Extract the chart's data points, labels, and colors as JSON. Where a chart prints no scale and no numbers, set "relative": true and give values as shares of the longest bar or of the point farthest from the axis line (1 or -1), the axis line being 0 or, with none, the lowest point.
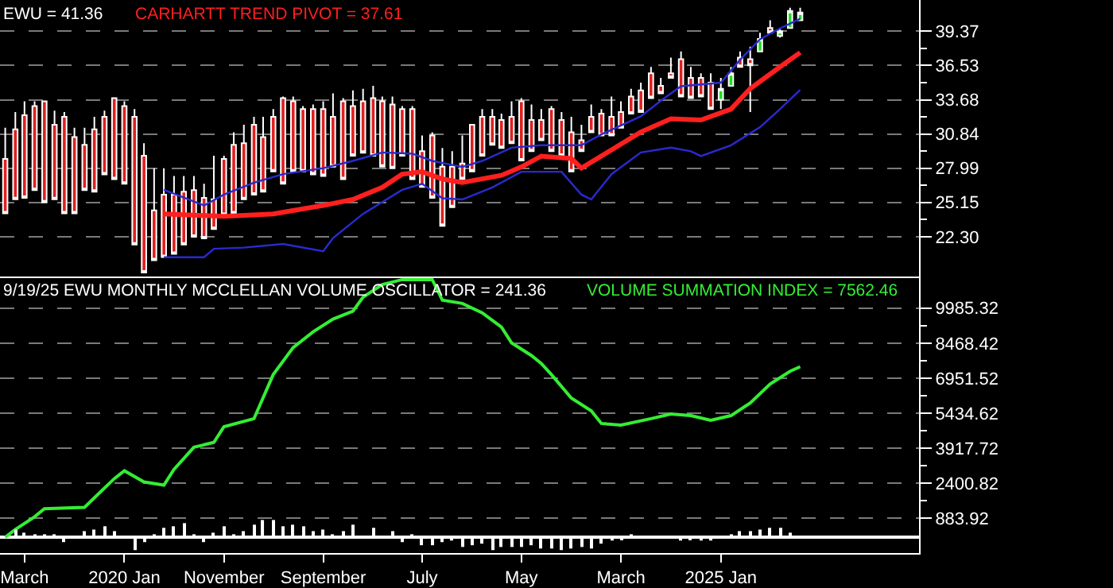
{
  "chart_data": [
    {
      "type": "candlestick",
      "xlim": [
        "2018-12-16",
        "2026-08-31"
      ],
      "ylim": [
        19.0,
        41.96
      ],
      "tick_labels": "y",
      "grid": "y",
      "legend": false,
      "yticks": [
        39.37,
        {
          "value": 37.95,
          "label": null
        },
        36.53,
        {
          "value": 35.105,
          "label": null
        },
        33.68,
        {
          "value": 32.26,
          "label": null
        },
        30.84,
        {
          "value": 29.415,
          "label": null
        },
        27.99,
        {
          "value": 26.57,
          "label": null
        },
        25.15,
        {
          "value": 23.725,
          "label": null
        },
        {
          "value": 22.3,
          "label": "22.30"
        }
      ],
      "series": [
        {
          "type": "candlestick",
          "name": "EWU = 41.36",
          "color": "#ffffff",
          "x": [
            "2019-01",
            "2019-02",
            "2019-03",
            "2019-04",
            "2019-05",
            "2019-06",
            "2019-07",
            "2019-08",
            "2019-09",
            "2019-10",
            "2019-11",
            "2019-12",
            "2020-01",
            "2020-02",
            "2020-03",
            "2020-04",
            "2020-05",
            "2020-06",
            "2020-07",
            "2020-08",
            "2020-09",
            "2020-10",
            "2020-11",
            "2020-12",
            "2021-01",
            "2021-02",
            "2021-03",
            "2021-04",
            "2021-05",
            "2021-06",
            "2021-07",
            "2021-08",
            "2021-09",
            "2021-10",
            "2021-11",
            "2021-12",
            "2022-01",
            "2022-02",
            "2022-03",
            "2022-04",
            "2022-05",
            "2022-06",
            "2022-07",
            "2022-08",
            "2022-09",
            "2022-10",
            "2022-11",
            "2022-12",
            "2023-01",
            "2023-02",
            "2023-03",
            "2023-04",
            "2023-05",
            "2023-06",
            "2023-07",
            "2023-08",
            "2023-09",
            "2023-10",
            "2023-11",
            "2023-12",
            "2024-01",
            "2024-02",
            "2024-03",
            "2024-04",
            "2024-05",
            "2024-06",
            "2024-07",
            "2024-08",
            "2024-09",
            "2024-10",
            "2024-11",
            "2024-12",
            "2025-01",
            "2025-02",
            "2025-03",
            "2025-04",
            "2025-05",
            "2025-06",
            "2025-07",
            "2025-08",
            "2025-09"
          ],
          "ohlc": [
            [
              28.77,
              31.35,
              24.24,
              24.24
            ],
            [
              31.22,
              32.65,
              25.41,
              25.41
            ],
            [
              32.39,
              33.55,
              25.54,
              25.54
            ],
            [
              33.16,
              33.55,
              26.18,
              26.18
            ],
            [
              33.55,
              33.55,
              25.15,
              25.15
            ],
            [
              31.61,
              32.78,
              25.41,
              25.41
            ],
            [
              32.26,
              32.65,
              24.24,
              24.24
            ],
            [
              30.58,
              31.35,
              24.24,
              24.24
            ],
            [
              29.93,
              31.35,
              26.18,
              26.18
            ],
            [
              31.22,
              32.26,
              26.05,
              26.05
            ],
            [
              32.26,
              32.78,
              27.47,
              27.47
            ],
            [
              33.81,
              33.81,
              27.09,
              27.09
            ],
            [
              33.16,
              33.55,
              26.7,
              26.7
            ],
            [
              32.26,
              32.91,
              21.65,
              21.65
            ],
            [
              29.03,
              30.06,
              19.33,
              19.33
            ],
            [
              24.5,
              27.99,
              20.36,
              20.36
            ],
            [
              25.79,
              27.99,
              20.62,
              20.62
            ],
            [
              25.79,
              27.35,
              20.88,
              20.88
            ],
            [
              26.05,
              27.35,
              21.65,
              21.65
            ],
            [
              26.18,
              27.35,
              22.3,
              22.3
            ],
            [
              25.54,
              26.7,
              22.17,
              22.17
            ],
            [
              25.41,
              29.03,
              22.95,
              22.95
            ],
            [
              28.77,
              29.03,
              24.11,
              24.11
            ],
            [
              29.93,
              30.97,
              24.24,
              24.24
            ],
            [
              30.06,
              31.61,
              25.41,
              25.41
            ],
            [
              31.61,
              32.26,
              25.79,
              25.79
            ],
            [
              30.58,
              32.26,
              26.05,
              26.05
            ],
            [
              32.26,
              32.91,
              27.73,
              27.73
            ],
            [
              33.81,
              33.94,
              26.7,
              26.7
            ],
            [
              33.55,
              33.94,
              27.73,
              27.73
            ],
            [
              32.91,
              33.16,
              27.73,
              27.73
            ],
            [
              32.91,
              33.29,
              27.47,
              27.47
            ],
            [
              32.91,
              33.55,
              27.35,
              27.35
            ],
            [
              32.26,
              34.2,
              28.12,
              28.12
            ],
            [
              33.55,
              33.81,
              27.09,
              27.09
            ],
            [
              33.16,
              34.46,
              29.03,
              29.03
            ],
            [
              33.55,
              34.59,
              29.28,
              29.28
            ],
            [
              33.81,
              34.84,
              29.03,
              29.03
            ],
            [
              33.55,
              33.94,
              28.12,
              28.12
            ],
            [
              33.29,
              33.94,
              27.99,
              27.99
            ],
            [
              32.91,
              33.16,
              29.03,
              29.03
            ],
            [
              32.91,
              33.16,
              27.09,
              27.09
            ],
            [
              29.41,
              30.71,
              26.44,
              26.44
            ],
            [
              30.71,
              30.97,
              25.54,
              25.54
            ],
            [
              28.12,
              29.67,
              23.21,
              23.21
            ],
            [
              28.12,
              29.41,
              24.76,
              24.76
            ],
            [
              28.38,
              30.71,
              27.09,
              27.09
            ],
            [
              31.61,
              31.61,
              27.73,
              27.73
            ],
            [
              32.26,
              32.91,
              29.03,
              29.03
            ],
            [
              32.26,
              32.91,
              29.93,
              29.93
            ],
            [
              32.0,
              32.52,
              29.67,
              29.67
            ],
            [
              32.26,
              33.55,
              30.06,
              30.06
            ],
            [
              33.55,
              33.81,
              28.64,
              28.64
            ],
            [
              32.0,
              33.29,
              29.41,
              29.41
            ],
            [
              32.0,
              32.91,
              30.32,
              30.32
            ],
            [
              32.91,
              33.16,
              29.41,
              29.41
            ],
            [
              32.0,
              32.65,
              29.03,
              29.03
            ],
            [
              30.97,
              32.26,
              27.73,
              27.73
            ],
            [
              30.32,
              31.61,
              29.41,
              29.41
            ],
            [
              32.26,
              33.29,
              30.97,
              30.97
            ],
            [
              32.52,
              32.91,
              30.71,
              30.71
            ],
            [
              32.26,
              33.94,
              30.71,
              30.71
            ],
            [
              32.65,
              33.55,
              31.35,
              31.35
            ],
            [
              33.94,
              34.59,
              32.52,
              32.52
            ],
            [
              34.46,
              35.1,
              32.65,
              32.65
            ],
            [
              35.88,
              36.4,
              33.81,
              33.81
            ],
            [
              34.84,
              35.49,
              34.2,
              34.2
            ],
            [
              35.88,
              37.17,
              35.49,
              35.49
            ],
            [
              37.04,
              37.69,
              33.94,
              33.94
            ],
            [
              35.49,
              36.4,
              33.81,
              33.81
            ],
            [
              35.49,
              35.88,
              33.94,
              33.94
            ],
            [
              35.1,
              35.88,
              32.91,
              32.91
            ],
            [
              33.68,
              35.49,
              32.91,
              34.59
            ],
            [
              34.84,
              36.4,
              34.84,
              35.88
            ],
            [
              37.17,
              37.69,
              36.4,
              36.4
            ],
            [
              37.04,
              38.08,
              32.65,
              36.53
            ],
            [
              37.69,
              39.24,
              37.69,
              38.72
            ],
            [
              39.63,
              40.28,
              39.24,
              39.24
            ],
            [
              38.98,
              39.63,
              38.85,
              39.37
            ],
            [
              39.63,
              41.31,
              39.63,
              41.05
            ],
            [
              40.28,
              41.31,
              40.28,
              40.92
            ]
          ],
          "colors": [
            "#e02020",
            "#e02020",
            "#e02020",
            "#e02020",
            "#e02020",
            "#e02020",
            "#e02020",
            "#e02020",
            "#e02020",
            "#e02020",
            "#e02020",
            "#e02020",
            "#e02020",
            "#e02020",
            "#e02020",
            "#e02020",
            "#e02020",
            "#e02020",
            "#e02020",
            "#e02020",
            "#e02020",
            "#e02020",
            "#e02020",
            "#e02020",
            "#e02020",
            "#e02020",
            "#e02020",
            "#e02020",
            "#e02020",
            "#e02020",
            "#e02020",
            "#e02020",
            "#e02020",
            "#e02020",
            "#e02020",
            "#e02020",
            "#e02020",
            "#e02020",
            "#e02020",
            "#e02020",
            "#e02020",
            "#e02020",
            "#e02020",
            "#e02020",
            "#e02020",
            "#e02020",
            "#e02020",
            "#e02020",
            "#e02020",
            "#e02020",
            "#e02020",
            "#e02020",
            "#e02020",
            "#e02020",
            "#e02020",
            "#e02020",
            "#e02020",
            "#e02020",
            "#e02020",
            "#e02020",
            "#e02020",
            "#e02020",
            "#e02020",
            "#e02020",
            "#e02020",
            "#e02020",
            "#e02020",
            "#e02020",
            "#e02020",
            "#e02020",
            "#e02020",
            "#e02020",
            "#22dd22",
            "#22dd22",
            "#e02020",
            "#e02020",
            "#22dd22",
            "#e02020",
            "#22dd22",
            "#22dd22",
            "#22dd22"
          ]
        },
        {
          "type": "line",
          "name": "CARHARTT TREND PIVOT = 37.61",
          "color": "#ff1f1f",
          "x": [
            "2020-05",
            "2020-11",
            "2021-04",
            "2021-09",
            "2021-12",
            "2022-03",
            "2022-05",
            "2022-07",
            "2022-09",
            "2022-11",
            "2023-03",
            "2023-05",
            "2023-07",
            "2023-10",
            "2023-11",
            "2024-01",
            "2024-05",
            "2024-08",
            "2024-11",
            "2025-02",
            "2025-04",
            "2025-07",
            "2025-09"
          ],
          "values": [
            24.2,
            24.0,
            24.2,
            24.9,
            25.4,
            26.4,
            27.5,
            27.7,
            27.1,
            26.8,
            27.4,
            28.1,
            29.0,
            28.8,
            28.0,
            29.0,
            31.0,
            32.1,
            32.0,
            32.9,
            34.6,
            36.4,
            37.6
          ]
        },
        {
          "type": "line",
          "color": "#2a2ad0",
          "x": [
            "2020-05",
            "2020-09",
            "2020-11",
            "2021-02",
            "2021-05",
            "2021-09",
            "2021-12",
            "2022-03",
            "2022-06",
            "2022-08",
            "2022-11",
            "2023-01",
            "2023-04",
            "2023-07",
            "2023-11",
            "2024-01",
            "2024-05",
            "2024-07",
            "2024-09",
            "2025-01",
            "2025-03",
            "2025-05",
            "2025-07",
            "2025-09"
          ],
          "values": [
            26.2,
            24.9,
            25.8,
            26.8,
            27.5,
            28.0,
            28.6,
            29.3,
            29.2,
            28.6,
            28.1,
            28.6,
            29.7,
            29.9,
            29.9,
            30.8,
            32.3,
            33.6,
            34.8,
            35.1,
            37.0,
            38.7,
            39.6,
            40.4
          ]
        },
        {
          "type": "line",
          "color": "#2a2ad0",
          "x": [
            "2020-05",
            "2020-09",
            "2020-10",
            "2021-01",
            "2021-05",
            "2021-09",
            "2021-10",
            "2022-01",
            "2022-05",
            "2022-07",
            "2022-09",
            "2022-11",
            "2023-02",
            "2023-05",
            "2023-09",
            "2023-11",
            "2023-12",
            "2024-02",
            "2024-05",
            "2024-08",
            "2024-10",
            "2024-11",
            "2025-02",
            "2025-05",
            "2025-07",
            "2025-09"
          ],
          "values": [
            20.6,
            20.6,
            21.3,
            21.4,
            21.7,
            21.1,
            22.2,
            24.2,
            26.2,
            26.7,
            25.5,
            25.4,
            26.4,
            27.7,
            27.7,
            25.8,
            25.4,
            27.5,
            29.3,
            29.7,
            29.4,
            29.0,
            29.9,
            31.4,
            32.9,
            34.5
          ]
        }
      ]
    },
    {
      "type": "line",
      "xlim": [
        "2018-12-16",
        "2026-08-31"
      ],
      "ylim": [
        -621,
        11354
      ],
      "grid": "y",
      "legend": false,
      "xticks": [
        {
          "value": "2019-03",
          "label": "March"
        },
        {
          "value": "2020-01",
          "label": "2020 Jan"
        },
        {
          "value": "2020-11",
          "label": "November"
        },
        {
          "value": "2021-09",
          "label": "September"
        },
        {
          "value": "2022-07",
          "label": "July"
        },
        {
          "value": "2023-05",
          "label": "May"
        },
        {
          "value": "2024-03",
          "label": "March"
        },
        {
          "value": "2025-01",
          "label": "2025 Jan"
        }
      ],
      "yticks": [
        9985.32,
        {
          "value": 9226.87,
          "label": null
        },
        8468.42,
        {
          "value": 7709.97,
          "label": null
        },
        6951.52,
        {
          "value": 6193.07,
          "label": null
        },
        5434.62,
        {
          "value": 4676.17,
          "label": null
        },
        3917.72,
        {
          "value": 3159.27,
          "label": null
        },
        2400.82,
        {
          "value": 1642.37,
          "label": null
        },
        883.92
      ],
      "series": [
        {
          "name": "VOLUME SUMMATION INDEX = 7562.46",
          "color": "#33ee33",
          "x": [
            "2019-01",
            "2019-02",
            "2019-04",
            "2019-05",
            "2019-09",
            "2019-10",
            "2019-12",
            "2020-01",
            "2020-03",
            "2020-05",
            "2020-06",
            "2020-08",
            "2020-10",
            "2020-11",
            "2021-02",
            "2021-04",
            "2021-06",
            "2021-08",
            "2021-10",
            "2021-12",
            "2022-01",
            "2022-03",
            "2022-05",
            "2022-08",
            "2022-09",
            "2022-11",
            "2023-01",
            "2023-03",
            "2023-04",
            "2023-06",
            "2023-07",
            "2023-08",
            "2023-10",
            "2023-12",
            "2024-01",
            "2024-03",
            "2024-06",
            "2024-08",
            "2024-10",
            "2024-12",
            "2025-02",
            "2025-04",
            "2025-06",
            "2025-08",
            "2025-09"
          ],
          "values": [
            60,
            400,
            950,
            1300,
            1360,
            1770,
            2600,
            2940,
            2460,
            2320,
            3000,
            3960,
            4170,
            4850,
            5200,
            7110,
            8280,
            8960,
            9510,
            9850,
            10460,
            11010,
            11220,
            11220,
            10330,
            10190,
            9780,
            9160,
            8480,
            7930,
            7590,
            7110,
            6090,
            5540,
            4990,
            4920,
            5200,
            5400,
            5330,
            5130,
            5330,
            5880,
            6700,
            7250,
            7450
          ]
        }
      ]
    },
    {
      "type": "bar",
      "relative": true,
      "title": "9/19/25 EWU MONTHLY MCCLELLAN VOLUME OSCILLATOR = 241.36",
      "xlim": [
        "2018-12-16",
        "2026-08-31"
      ],
      "tick_labels": false,
      "color": "#ffffff",
      "x": [
        "2019-02",
        "2019-03",
        "2019-04",
        "2019-05",
        "2019-06",
        "2019-07",
        "2019-08",
        "2019-09",
        "2019-10",
        "2019-11",
        "2019-12",
        "2020-01",
        "2020-02",
        "2020-03",
        "2020-04",
        "2020-05",
        "2020-06",
        "2020-07",
        "2020-08",
        "2020-09",
        "2020-10",
        "2020-11",
        "2020-12",
        "2021-01",
        "2021-02",
        "2021-03",
        "2021-04",
        "2021-05",
        "2021-06",
        "2021-07",
        "2021-08",
        "2021-09",
        "2021-10",
        "2021-11",
        "2021-12",
        "2022-01",
        "2022-02",
        "2022-03",
        "2022-04",
        "2022-05",
        "2022-06",
        "2022-07",
        "2022-08",
        "2022-09",
        "2022-10",
        "2022-11",
        "2022-12",
        "2023-01",
        "2023-02",
        "2023-03",
        "2023-04",
        "2023-05",
        "2023-06",
        "2023-07",
        "2023-08",
        "2023-09",
        "2023-10",
        "2023-11",
        "2023-12",
        "2024-01",
        "2024-02",
        "2024-03",
        "2024-04",
        "2024-05",
        "2024-06",
        "2024-07",
        "2024-08",
        "2024-09",
        "2024-10",
        "2024-11",
        "2024-12",
        "2025-01",
        "2025-02",
        "2025-03",
        "2025-04",
        "2025-05",
        "2025-06",
        "2025-07",
        "2025-08"
      ],
      "values": [
        0.45,
        0.27,
        0.18,
        0.18,
        0.18,
        -0.27,
        null,
        0.36,
        0.45,
        0.64,
        0.36,
        null,
        -0.73,
        -0.27,
        0.18,
        0.55,
        0.64,
        0.82,
        0.18,
        -0.27,
        0.27,
        0.64,
        0.18,
        0.36,
        0.73,
        1,
        1,
        0.64,
        0.73,
        0.64,
        0.36,
        0.45,
        0.18,
        0.36,
        0.73,
        null,
        0.55,
        null,
        0.36,
        -0.27,
        0.18,
        -0.45,
        -0.45,
        -0.27,
        -0.18,
        -0.55,
        -0.45,
        -0.36,
        -0.73,
        -0.55,
        -0.55,
        -0.55,
        -0.45,
        -0.64,
        -0.64,
        -0.73,
        -0.64,
        -0.55,
        -0.64,
        -0.36,
        -0.18,
        -0.09,
        0.18,
        null,
        0.09,
        0.09,
        null,
        -0.18,
        -0.09,
        -0.18,
        -0.18,
        0.09,
        0.18,
        0.36,
        0.36,
        0.45,
        0.55,
        0.55,
        0.27
      ]
    }
  ]
}
